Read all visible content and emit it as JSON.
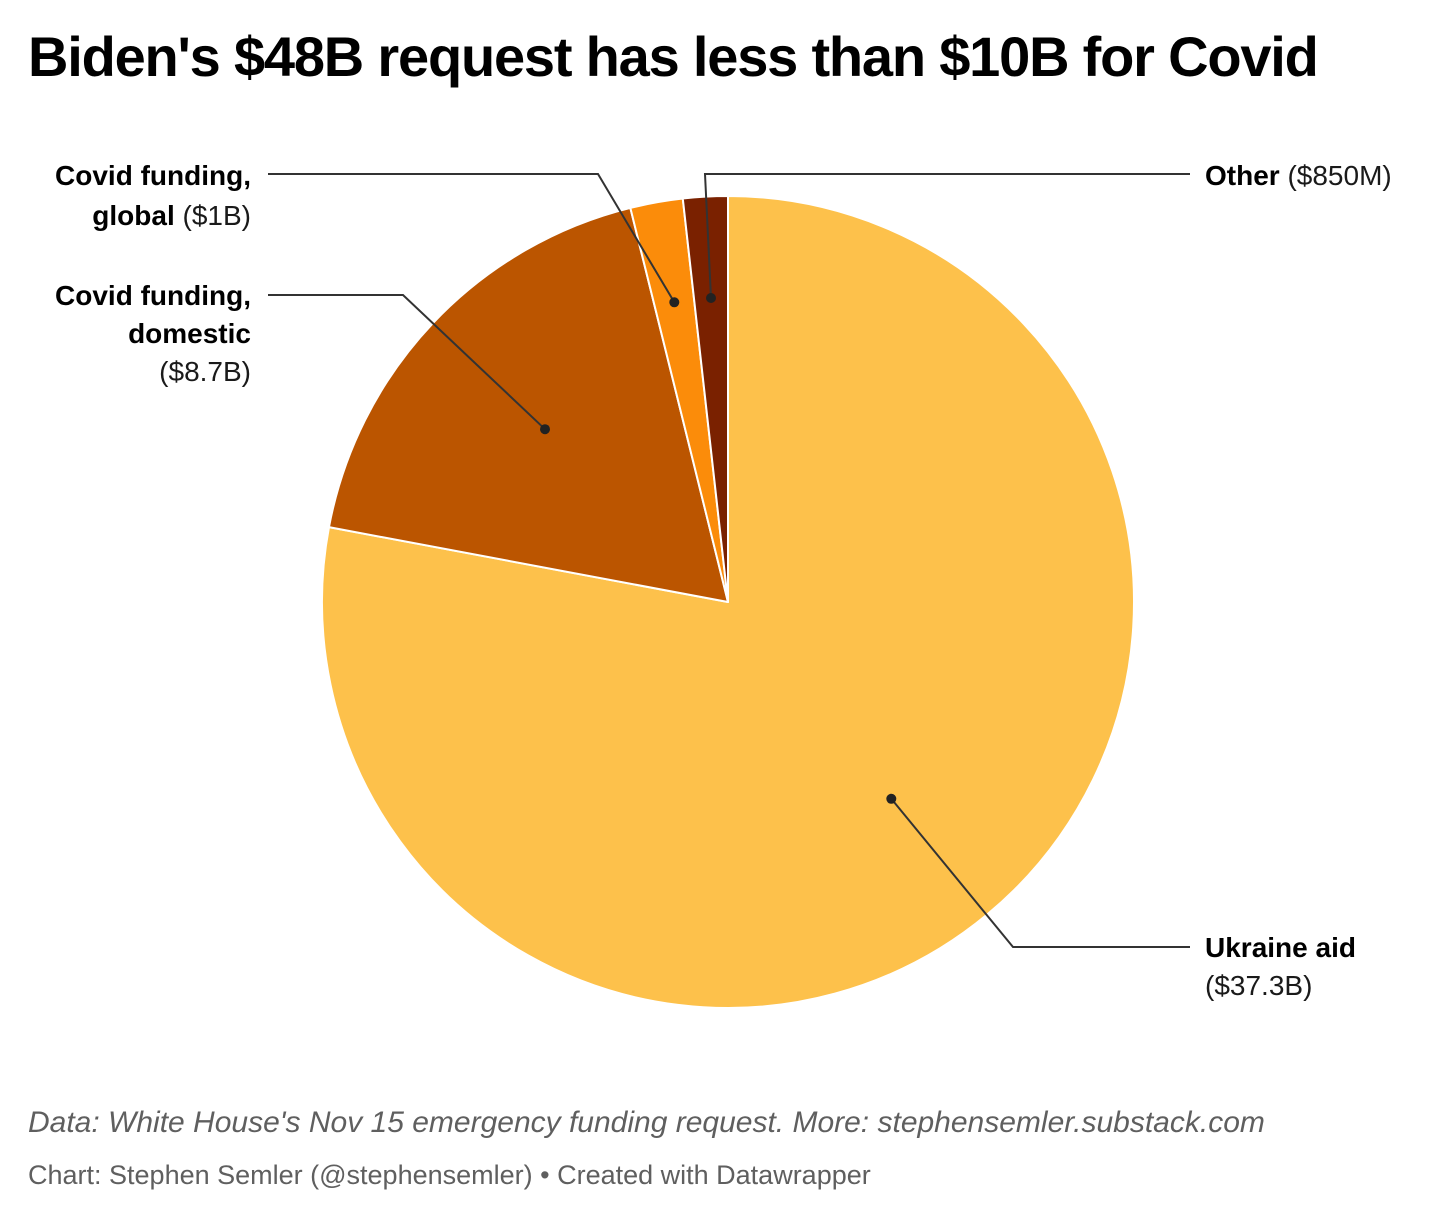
{
  "title": "Biden's $48B request has less than $10B for Covid",
  "chart_data": {
    "type": "pie",
    "title": "Biden's $48B request has less than $10B for Covid",
    "unit": "billions of US dollars",
    "start_angle": "12 o'clock",
    "direction": "clockwise",
    "slices": [
      {
        "name": "Ukraine aid",
        "value": 37.3,
        "value_label": "($37.3B)",
        "color": "#fdc14b"
      },
      {
        "name": "Covid funding, domestic",
        "value": 8.7,
        "value_label": "($8.7B)",
        "color": "#bb5500"
      },
      {
        "name": "Covid funding, global",
        "value": 1.0,
        "value_label": "($1B)",
        "color": "#fb8c0a"
      },
      {
        "name": "Other",
        "value": 0.85,
        "value_label": "($850M)",
        "color": "#7a2100"
      }
    ],
    "labels": [
      {
        "slice": 0,
        "lines": [
          {
            "name": "Ukraine aid"
          },
          {
            "value": "($37.3B)"
          }
        ]
      },
      {
        "slice": 1,
        "lines": [
          {
            "name": "Covid funding,"
          },
          {
            "name": "domestic"
          },
          {
            "value": "($8.7B)"
          }
        ]
      },
      {
        "slice": 2,
        "lines": [
          {
            "name": "Covid funding,"
          },
          {
            "name": "global",
            "value": "($1B)"
          }
        ]
      },
      {
        "slice": 3,
        "lines": [
          {
            "name": "Other",
            "value": "($850M)"
          }
        ]
      }
    ]
  },
  "footer": {
    "source": "Data: White House's Nov 15 emergency funding request. More: stephensemler.substack.com",
    "credit": "Chart: Stephen Semler (@stephensemler) • Created with Datawrapper"
  }
}
